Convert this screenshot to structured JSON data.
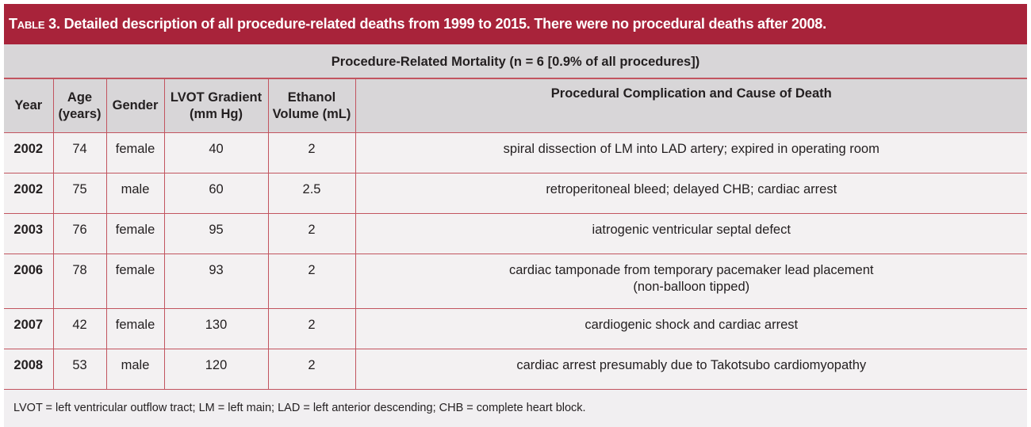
{
  "title": {
    "label": "Table 3.",
    "text": " Detailed description of all procedure-related deaths from 1999 to 2015. There were no procedural deaths after 2008."
  },
  "subheader": "Procedure-Related Mortality (n = 6 [0.9% of all procedures])",
  "columns": [
    [
      "Year"
    ],
    [
      "Age",
      "(years)"
    ],
    [
      "Gender"
    ],
    [
      "LVOT Gradient",
      "(mm Hg)"
    ],
    [
      "Ethanol",
      "Volume (mL)"
    ],
    [
      "Procedural Complication and Cause of Death"
    ]
  ],
  "rows": [
    {
      "year": "2002",
      "age": "74",
      "gender": "female",
      "lvot": "40",
      "ethanol": "2",
      "cause": [
        "spiral dissection of LM into LAD artery; expired in operating room"
      ]
    },
    {
      "year": "2002",
      "age": "75",
      "gender": "male",
      "lvot": "60",
      "ethanol": "2.5",
      "cause": [
        "retroperitoneal bleed; delayed CHB; cardiac arrest"
      ]
    },
    {
      "year": "2003",
      "age": "76",
      "gender": "female",
      "lvot": "95",
      "ethanol": "2",
      "cause": [
        "iatrogenic ventricular septal defect"
      ]
    },
    {
      "year": "2006",
      "age": "78",
      "gender": "female",
      "lvot": "93",
      "ethanol": "2",
      "cause": [
        "cardiac tamponade from temporary pacemaker lead placement",
        "(non-balloon tipped)"
      ]
    },
    {
      "year": "2007",
      "age": "42",
      "gender": "female",
      "lvot": "130",
      "ethanol": "2",
      "cause": [
        "cardiogenic shock and cardiac arrest"
      ]
    },
    {
      "year": "2008",
      "age": "53",
      "gender": "male",
      "lvot": "120",
      "ethanol": "2",
      "cause": [
        "cardiac arrest presumably due to Takotsubo cardiomyopathy"
      ]
    }
  ],
  "footnote": "LVOT = left ventricular outflow tract; LM = left main; LAD = left anterior descending; CHB = complete heart block.",
  "colors": {
    "title_bg": "#a8233a",
    "header_bg": "#d8d6d8",
    "row_bg": "#f3f1f2",
    "border": "#c2545f"
  }
}
